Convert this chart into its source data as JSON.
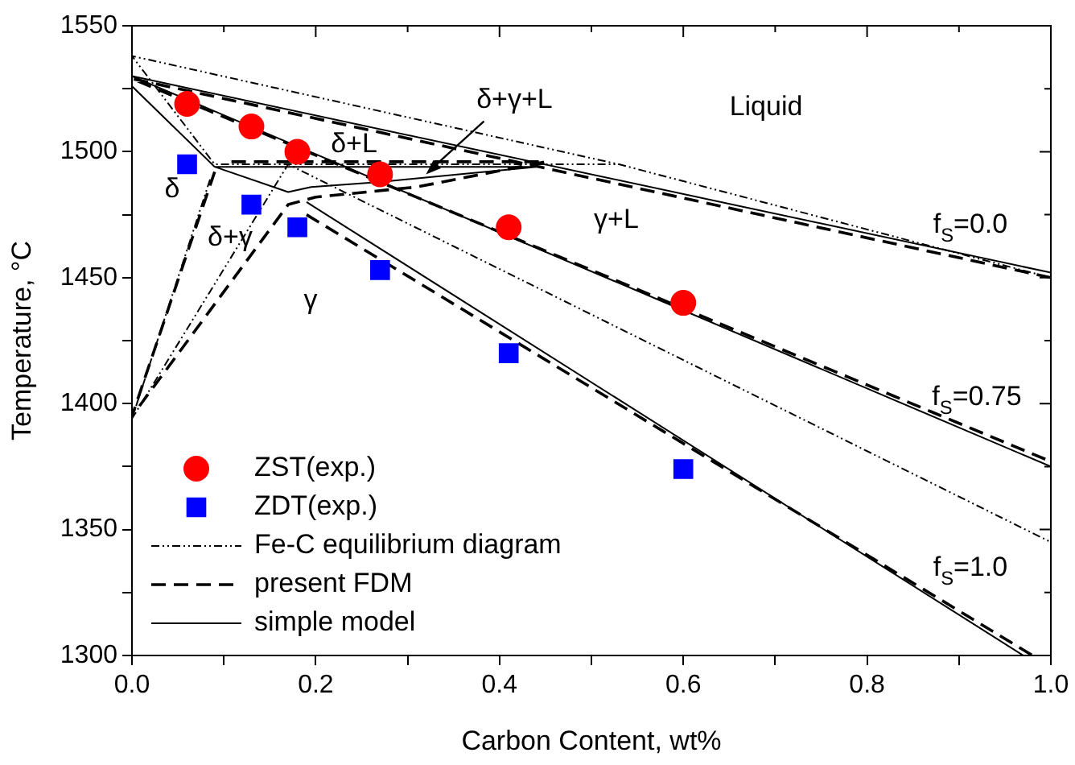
{
  "chart_data": {
    "type": "scatter",
    "xlabel": "Carbon Content, wt%",
    "ylabel": "Temperature, °C",
    "xlim": [
      0,
      1.0
    ],
    "ylim": [
      1300,
      1550
    ],
    "xticks": [
      {
        "value": 0,
        "label": "0.0"
      },
      {
        "value": 0.1,
        "label": null
      },
      {
        "value": 0.2,
        "label": "0.2"
      },
      {
        "value": 0.3,
        "label": null
      },
      {
        "value": 0.4,
        "label": "0.4"
      },
      {
        "value": 0.5,
        "label": null
      },
      {
        "value": 0.6,
        "label": "0.6"
      },
      {
        "value": 0.7,
        "label": null
      },
      {
        "value": 0.8,
        "label": "0.8"
      },
      {
        "value": 0.9,
        "label": null
      },
      {
        "value": 1.0,
        "label": "1.0"
      }
    ],
    "yticks": [
      1300,
      {
        "value": 1325,
        "label": null
      },
      1350,
      {
        "value": 1375,
        "label": null
      },
      1400,
      {
        "value": 1425,
        "label": null
      },
      1450,
      {
        "value": 1475,
        "label": null
      },
      1500,
      {
        "value": 1525,
        "label": null
      },
      1550
    ],
    "grid": false,
    "legend": "bottom left",
    "series": [
      {
        "name": "ZST(exp.)",
        "marker": "circle",
        "color": "#ff0000",
        "x": [
          0.06,
          0.13,
          0.18,
          0.27,
          0.41,
          0.6
        ],
        "values": [
          1519,
          1510,
          1500,
          1491,
          1470,
          1440
        ]
      },
      {
        "name": "ZDT(exp.)",
        "marker": "square",
        "color": "#0000ff",
        "x": [
          0.06,
          0.13,
          0.18,
          0.27,
          0.41,
          0.6
        ],
        "values": [
          1495,
          1479,
          1470,
          1453,
          1420,
          1374
        ]
      },
      {
        "name": "Fe-C equilibrium diagram",
        "type": "line",
        "line_style": "dotted",
        "marker": "none",
        "color": "#000000",
        "x": [
          1.0,
          0.53,
          0,
          0.09,
          0.53
        ],
        "values": [
          1450,
          1495,
          1538,
          1495,
          1495
        ]
      },
      {
        "name": "present FDM",
        "type": "line",
        "line_style": "dashed",
        "marker": "none",
        "color": "#000000",
        "x": [
          1.0,
          0,
          1.0
        ],
        "values": [
          1450,
          1529,
          1377
        ]
      },
      {
        "name": "simple model",
        "type": "line",
        "line_style": "solid",
        "marker": "none",
        "color": "#000000",
        "x": [
          1.0,
          0,
          1.0
        ],
        "values": [
          1452,
          1530,
          1375
        ]
      },
      {
        "type": "line",
        "line_style": "dotted",
        "marker": "none",
        "color": "#000000",
        "x": [
          0.085,
          0,
          0.17,
          1.0
        ],
        "values": [
          1489,
          1394,
          1495,
          1345
        ]
      },
      {
        "type": "line",
        "line_style": "dashed",
        "marker": "none",
        "color": "#000000",
        "x": [
          0.09,
          0,
          0.17,
          0.2,
          0.31,
          0.45,
          0.1
        ],
        "values": [
          1492,
          1395,
          1479,
          1482,
          1486,
          1496,
          1496
        ]
      },
      {
        "type": "line",
        "line_style": "dashed",
        "marker": "none",
        "color": "#000000",
        "x": [
          0.19,
          0.98
        ],
        "values": [
          1475,
          1300
        ]
      },
      {
        "type": "line",
        "line_style": "solid",
        "marker": "none",
        "color": "#000000",
        "x": [
          0,
          0.09,
          0.17,
          0.195,
          0.27,
          0.44,
          0.09
        ],
        "values": [
          1526,
          1494,
          1484,
          1486,
          1488,
          1494,
          1494
        ]
      },
      {
        "type": "line",
        "line_style": "solid",
        "marker": "none",
        "color": "#000000",
        "x": [
          0.19,
          0.97
        ],
        "values": [
          1480,
          1300
        ]
      }
    ],
    "annotations": [
      "Liquid",
      {
        "text": "δ+γ+L",
        "x": 0.32,
        "y": 1491
      },
      "δ+L",
      "δ",
      "δ+γ",
      "γ",
      "γ+L",
      "f$_{S}$=0.0",
      "f$_{S}$=0.75",
      "f$_{S}$=1.0"
    ]
  }
}
